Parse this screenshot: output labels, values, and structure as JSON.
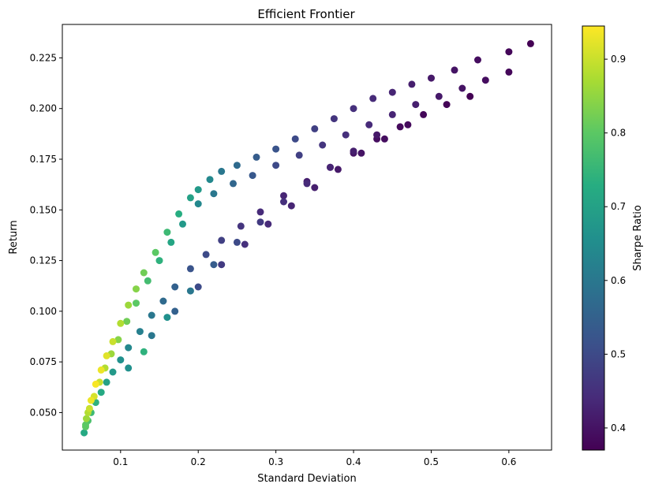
{
  "chart_data": {
    "type": "scatter",
    "title": "Efficient Frontier",
    "xlabel": "Standard Deviation",
    "ylabel": "Return",
    "xlim": [
      0.025,
      0.655
    ],
    "ylim": [
      0.0315,
      0.2415
    ],
    "xticks": [
      0.1,
      0.2,
      0.3,
      0.4,
      0.5,
      0.6
    ],
    "xtick_labels": [
      "0.1",
      "0.2",
      "0.3",
      "0.4",
      "0.5",
      "0.6"
    ],
    "yticks": [
      0.05,
      0.075,
      0.1,
      0.125,
      0.15,
      0.175,
      0.2,
      0.225
    ],
    "ytick_labels": [
      "0.050",
      "0.075",
      "0.100",
      "0.125",
      "0.150",
      "0.175",
      "0.200",
      "0.225"
    ],
    "grid": false,
    "colormap": "viridis",
    "colorbar": {
      "label": "Sharpe Ratio",
      "range": [
        0.37,
        0.945
      ],
      "ticks": [
        0.4,
        0.5,
        0.6,
        0.7,
        0.8,
        0.9
      ],
      "tick_labels": [
        "0.4",
        "0.5",
        "0.6",
        "0.7",
        "0.8",
        "0.9"
      ]
    },
    "series": [
      {
        "x": [
          0.053,
          0.055,
          0.058,
          0.062,
          0.068,
          0.075,
          0.082,
          0.09,
          0.1,
          0.11,
          0.12,
          0.13,
          0.145,
          0.16,
          0.175,
          0.19,
          0.2,
          0.215,
          0.23,
          0.25,
          0.275,
          0.3,
          0.325,
          0.35,
          0.375,
          0.4,
          0.425,
          0.45,
          0.475,
          0.5,
          0.53,
          0.56,
          0.6,
          0.628,
          0.056,
          0.06,
          0.066,
          0.073,
          0.08,
          0.088,
          0.097,
          0.108,
          0.12,
          0.135,
          0.15,
          0.165,
          0.18,
          0.2,
          0.22,
          0.245,
          0.27,
          0.3,
          0.33,
          0.36,
          0.39,
          0.42,
          0.45,
          0.48,
          0.51,
          0.54,
          0.57,
          0.6,
          0.055,
          0.058,
          0.062,
          0.068,
          0.075,
          0.082,
          0.09,
          0.1,
          0.11,
          0.125,
          0.14,
          0.155,
          0.17,
          0.19,
          0.21,
          0.23,
          0.255,
          0.28,
          0.31,
          0.34,
          0.37,
          0.4,
          0.43,
          0.46,
          0.49,
          0.52,
          0.55,
          0.11,
          0.14,
          0.17,
          0.2,
          0.23,
          0.26,
          0.29,
          0.32,
          0.35,
          0.38,
          0.41,
          0.44,
          0.47,
          0.13,
          0.16,
          0.19,
          0.22,
          0.25,
          0.28,
          0.31,
          0.34,
          0.37,
          0.4,
          0.43
        ],
        "y": [
          0.04,
          0.044,
          0.05,
          0.056,
          0.064,
          0.071,
          0.078,
          0.085,
          0.094,
          0.103,
          0.111,
          0.119,
          0.129,
          0.139,
          0.148,
          0.156,
          0.16,
          0.165,
          0.169,
          0.172,
          0.176,
          0.18,
          0.185,
          0.19,
          0.195,
          0.2,
          0.205,
          0.208,
          0.212,
          0.215,
          0.219,
          0.224,
          0.228,
          0.232,
          0.047,
          0.052,
          0.058,
          0.065,
          0.072,
          0.079,
          0.086,
          0.095,
          0.104,
          0.115,
          0.125,
          0.134,
          0.143,
          0.153,
          0.158,
          0.163,
          0.167,
          0.172,
          0.177,
          0.182,
          0.187,
          0.192,
          0.197,
          0.202,
          0.206,
          0.21,
          0.214,
          0.218,
          0.043,
          0.046,
          0.05,
          0.055,
          0.06,
          0.065,
          0.07,
          0.076,
          0.082,
          0.09,
          0.098,
          0.105,
          0.112,
          0.121,
          0.128,
          0.135,
          0.142,
          0.149,
          0.157,
          0.164,
          0.171,
          0.178,
          0.185,
          0.191,
          0.197,
          0.202,
          0.206,
          0.072,
          0.088,
          0.1,
          0.112,
          0.123,
          0.133,
          0.143,
          0.152,
          0.161,
          0.17,
          0.178,
          0.185,
          0.192,
          0.08,
          0.097,
          0.11,
          0.123,
          0.134,
          0.144,
          0.154,
          0.163,
          0.171,
          0.179,
          0.187
        ],
        "sharpe": [
          0.72,
          0.8,
          0.88,
          0.93,
          0.94,
          0.93,
          0.92,
          0.9,
          0.88,
          0.86,
          0.84,
          0.82,
          0.8,
          0.76,
          0.73,
          0.7,
          0.68,
          0.64,
          0.6,
          0.57,
          0.54,
          0.52,
          0.5,
          0.48,
          0.46,
          0.45,
          0.44,
          0.43,
          0.42,
          0.41,
          0.4,
          0.39,
          0.38,
          0.37,
          0.86,
          0.9,
          0.91,
          0.9,
          0.88,
          0.86,
          0.84,
          0.82,
          0.8,
          0.77,
          0.74,
          0.71,
          0.68,
          0.64,
          0.6,
          0.56,
          0.53,
          0.5,
          0.48,
          0.46,
          0.45,
          0.44,
          0.43,
          0.42,
          0.41,
          0.4,
          0.39,
          0.38,
          0.8,
          0.78,
          0.76,
          0.74,
          0.72,
          0.7,
          0.68,
          0.66,
          0.64,
          0.62,
          0.6,
          0.57,
          0.55,
          0.52,
          0.5,
          0.48,
          0.46,
          0.44,
          0.43,
          0.42,
          0.41,
          0.4,
          0.39,
          0.385,
          0.38,
          0.375,
          0.37,
          0.66,
          0.6,
          0.55,
          0.5,
          0.47,
          0.45,
          0.44,
          0.43,
          0.42,
          0.41,
          0.4,
          0.39,
          0.385,
          0.74,
          0.66,
          0.6,
          0.54,
          0.5,
          0.47,
          0.45,
          0.44,
          0.43,
          0.42,
          0.41
        ]
      }
    ]
  }
}
